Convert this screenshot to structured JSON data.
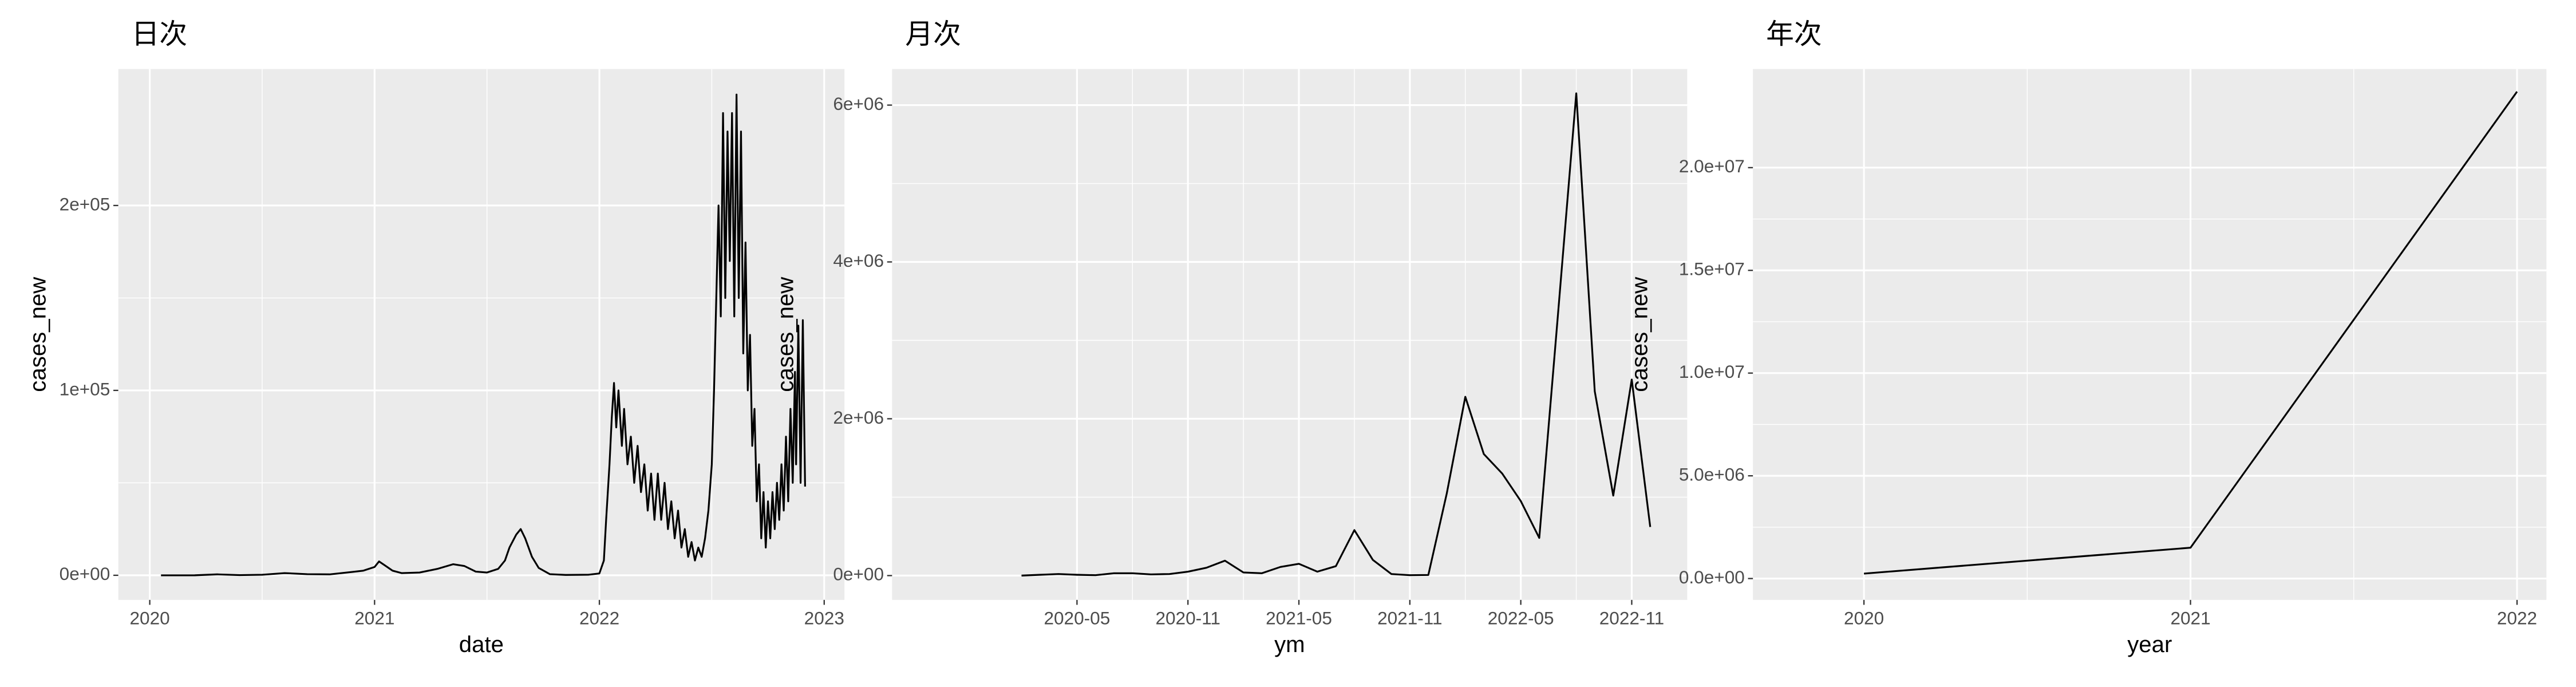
{
  "chart_data": [
    {
      "type": "line",
      "title": "日次",
      "x_label": "date",
      "y_label": "cases_new",
      "color": "#000000",
      "grid": true,
      "x": [
        2020.05,
        2020.2,
        2020.3,
        2020.4,
        2020.5,
        2020.6,
        2020.7,
        2020.8,
        2020.9,
        2020.95,
        2021.0,
        2021.02,
        2021.05,
        2021.08,
        2021.12,
        2021.2,
        2021.28,
        2021.35,
        2021.4,
        2021.45,
        2021.5,
        2021.55,
        2021.58,
        2021.6,
        2021.63,
        2021.65,
        2021.67,
        2021.7,
        2021.73,
        2021.78,
        2021.85,
        2021.95,
        2022.0,
        2022.02,
        2022.03,
        2022.045,
        2022.055,
        2022.065,
        2022.075,
        2022.085,
        2022.1,
        2022.11,
        2022.125,
        2022.14,
        2022.155,
        2022.17,
        2022.185,
        2022.2,
        2022.215,
        2022.23,
        2022.245,
        2022.26,
        2022.275,
        2022.29,
        2022.305,
        2022.32,
        2022.335,
        2022.35,
        2022.365,
        2022.38,
        2022.395,
        2022.41,
        2022.425,
        2022.44,
        2022.455,
        2022.47,
        2022.485,
        2022.5,
        2022.51,
        2022.52,
        2022.53,
        2022.54,
        2022.55,
        2022.56,
        2022.57,
        2022.58,
        2022.59,
        2022.6,
        2022.61,
        2022.62,
        2022.63,
        2022.64,
        2022.65,
        2022.66,
        2022.67,
        2022.68,
        2022.69,
        2022.7,
        2022.71,
        2022.72,
        2022.73,
        2022.74,
        2022.75,
        2022.76,
        2022.77,
        2022.78,
        2022.79,
        2022.8,
        2022.81,
        2022.82,
        2022.83,
        2022.84,
        2022.85,
        2022.86,
        2022.87,
        2022.875,
        2022.885,
        2022.895,
        2022.905,
        2022.915
      ],
      "values": [
        0,
        10,
        500,
        100,
        300,
        1200,
        600,
        500,
        1800,
        2500,
        4500,
        7500,
        5000,
        2500,
        1200,
        1500,
        3500,
        6000,
        5000,
        2000,
        1500,
        3500,
        8000,
        15000,
        22000,
        25000,
        20000,
        10000,
        4000,
        600,
        200,
        300,
        1000,
        8000,
        30000,
        60000,
        85000,
        104000,
        80000,
        100000,
        70000,
        90000,
        60000,
        75000,
        50000,
        70000,
        45000,
        60000,
        35000,
        55000,
        30000,
        55000,
        30000,
        50000,
        25000,
        40000,
        20000,
        35000,
        15000,
        25000,
        10000,
        18000,
        8000,
        15000,
        10000,
        20000,
        35000,
        60000,
        100000,
        150000,
        200000,
        140000,
        250000,
        150000,
        240000,
        170000,
        250000,
        140000,
        260000,
        150000,
        240000,
        120000,
        180000,
        100000,
        130000,
        70000,
        90000,
        40000,
        60000,
        20000,
        45000,
        15000,
        40000,
        20000,
        45000,
        25000,
        50000,
        30000,
        60000,
        35000,
        75000,
        40000,
        90000,
        50000,
        110000,
        60000,
        135000,
        50000,
        138000,
        48000
      ],
      "xlim": [
        2019.86,
        2023.09
      ],
      "ylim": [
        -13300,
        273800
      ],
      "xticks": [
        2020,
        2021,
        2022,
        2023
      ],
      "yticks": [
        {
          "value": 0,
          "label": "0e+00"
        },
        {
          "value": 100000,
          "label": "1e+05"
        },
        {
          "value": 200000,
          "label": "2e+05"
        }
      ]
    },
    {
      "type": "line",
      "title": "月次",
      "x_label": "ym",
      "y_label": "cases_new",
      "color": "#000000",
      "grid": true,
      "x": [
        "2020-02",
        "2020-03",
        "2020-04",
        "2020-05",
        "2020-06",
        "2020-07",
        "2020-08",
        "2020-09",
        "2020-10",
        "2020-11",
        "2020-12",
        "2021-01",
        "2021-02",
        "2021-03",
        "2021-04",
        "2021-05",
        "2021-06",
        "2021-07",
        "2021-08",
        "2021-09",
        "2021-10",
        "2021-11",
        "2021-12",
        "2022-01",
        "2022-02",
        "2022-03",
        "2022-04",
        "2022-05",
        "2022-06",
        "2022-07",
        "2022-08",
        "2022-09",
        "2022-10",
        "2022-11",
        "2022-12"
      ],
      "values": [
        0,
        10000,
        20000,
        10000,
        5000,
        30000,
        30000,
        15000,
        20000,
        50000,
        100000,
        190000,
        40000,
        30000,
        110000,
        150000,
        50000,
        120000,
        580000,
        200000,
        20000,
        5000,
        8000,
        1050000,
        2280000,
        1550000,
        1300000,
        950000,
        480000,
        3300000,
        6150000,
        2350000,
        1020000,
        2500000,
        620000
      ],
      "xlim": [
        "2019-07",
        "2023-02"
      ],
      "ylim": [
        -310000,
        6460000
      ],
      "xticks": [
        "2020-05",
        "2020-11",
        "2021-05",
        "2021-11",
        "2022-05",
        "2022-11"
      ],
      "yticks": [
        {
          "value": 0,
          "label": "0e+00"
        },
        {
          "value": 2000000,
          "label": "2e+06"
        },
        {
          "value": 4000000,
          "label": "4e+06"
        },
        {
          "value": 6000000,
          "label": "6e+06"
        }
      ]
    },
    {
      "type": "line",
      "title": "年次",
      "x_label": "year",
      "y_label": "cases_new",
      "color": "#000000",
      "grid": true,
      "x": [
        2020,
        2021,
        2022
      ],
      "values": [
        240000,
        1500000,
        23700000
      ],
      "xlim": [
        2019.66,
        2022.09
      ],
      "ylim": [
        -1040000,
        24800000
      ],
      "xticks": [
        2020,
        2021,
        2022
      ],
      "yticks": [
        {
          "value": 0,
          "label": "0.0e+00"
        },
        {
          "value": 5000000,
          "label": "5.0e+06"
        },
        {
          "value": 10000000,
          "label": "1.0e+07"
        },
        {
          "value": 15000000,
          "label": "1.5e+07"
        },
        {
          "value": 20000000,
          "label": "2.0e+07"
        }
      ]
    }
  ]
}
